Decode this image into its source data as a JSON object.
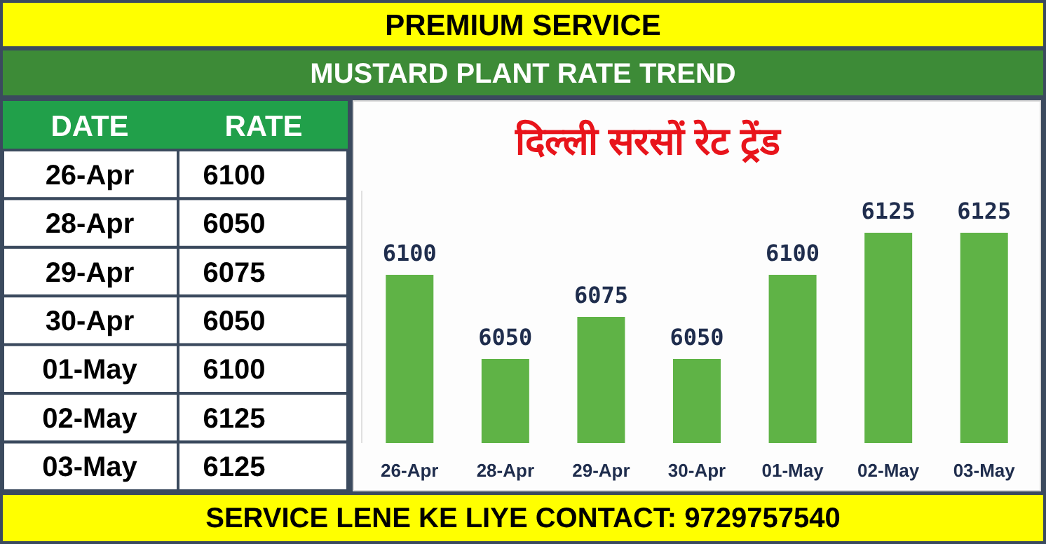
{
  "chart_data": [
    {
      "type": "other",
      "title": "MUSTARD PLANT RATE TREND",
      "xlabel": "DATE",
      "ylabel": "RATE",
      "annotations": [
        "PREMIUM SERVICE"
      ],
      "categories": [
        "26-Apr",
        "28-Apr",
        "29-Apr",
        "30-Apr",
        "01-May",
        "02-May",
        "03-May"
      ],
      "values": [
        6100,
        6050,
        6075,
        6050,
        6100,
        6125,
        6125
      ],
      "data_labels": true
    },
    {
      "type": "bar",
      "title": "दिल्ली सरसों रेट ट्रेंड",
      "categories": [
        "26-Apr",
        "28-Apr",
        "29-Apr",
        "30-Apr",
        "01-May",
        "02-May",
        "03-May"
      ],
      "values": [
        6100,
        6050,
        6075,
        6050,
        6100,
        6125,
        6125
      ],
      "color": "#5fb346",
      "ylim": [
        6000,
        6150
      ],
      "data_labels": true,
      "annotations": [
        "SERVICE LENE KE LIYE CONTACT: 9729757540"
      ]
    }
  ]
}
